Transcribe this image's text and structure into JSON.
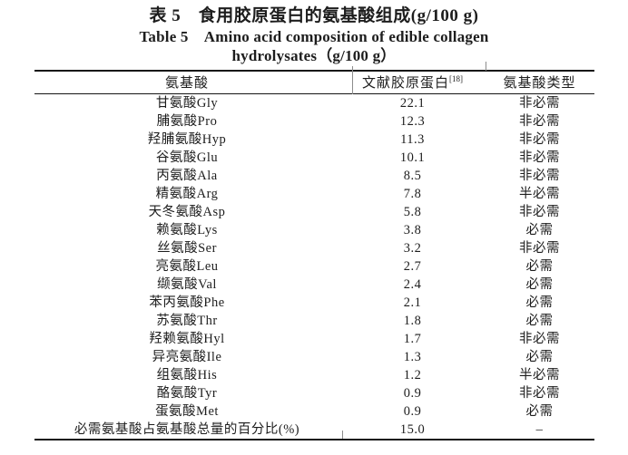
{
  "caption": {
    "zh": "表 5　食用胶原蛋白的氨基酸组成(g/100 g)",
    "en_line1": "Table 5　Amino acid composition of edible collagen",
    "en_line2": "hydrolysates（g/100 g）"
  },
  "table": {
    "columns": [
      "氨基酸",
      "文献胶原蛋白",
      "氨基酸类型"
    ],
    "reference_superscript": "[18]",
    "rows": [
      {
        "name": "甘氨酸Gly",
        "value": "22.1",
        "type": "非必需"
      },
      {
        "name": "脯氨酸Pro",
        "value": "12.3",
        "type": "非必需"
      },
      {
        "name": "羟脯氨酸Hyp",
        "value": "11.3",
        "type": "非必需"
      },
      {
        "name": "谷氨酸Glu",
        "value": "10.1",
        "type": "非必需"
      },
      {
        "name": "丙氨酸Ala",
        "value": "8.5",
        "type": "非必需"
      },
      {
        "name": "精氨酸Arg",
        "value": "7.8",
        "type": "半必需"
      },
      {
        "name": "天冬氨酸Asp",
        "value": "5.8",
        "type": "非必需"
      },
      {
        "name": "赖氨酸Lys",
        "value": "3.8",
        "type": "必需"
      },
      {
        "name": "丝氨酸Ser",
        "value": "3.2",
        "type": "非必需"
      },
      {
        "name": "亮氨酸Leu",
        "value": "2.7",
        "type": "必需"
      },
      {
        "name": "缬氨酸Val",
        "value": "2.4",
        "type": "必需"
      },
      {
        "name": "苯丙氨酸Phe",
        "value": "2.1",
        "type": "必需"
      },
      {
        "name": "苏氨酸Thr",
        "value": "1.8",
        "type": "必需"
      },
      {
        "name": "羟赖氨酸Hyl",
        "value": "1.7",
        "type": "非必需"
      },
      {
        "name": "异亮氨酸Ile",
        "value": "1.3",
        "type": "必需"
      },
      {
        "name": "组氨酸His",
        "value": "1.2",
        "type": "半必需"
      },
      {
        "name": "酪氨酸Tyr",
        "value": "0.9",
        "type": "非必需"
      },
      {
        "name": "蛋氨酸Met",
        "value": "0.9",
        "type": "必需"
      },
      {
        "name": "必需氨基酸占氨基酸总量的百分比(%)",
        "value": "15.0",
        "type": "–"
      }
    ]
  },
  "colors": {
    "text": "#1d1d1d",
    "rule": "#151515",
    "background": "#ffffff"
  }
}
